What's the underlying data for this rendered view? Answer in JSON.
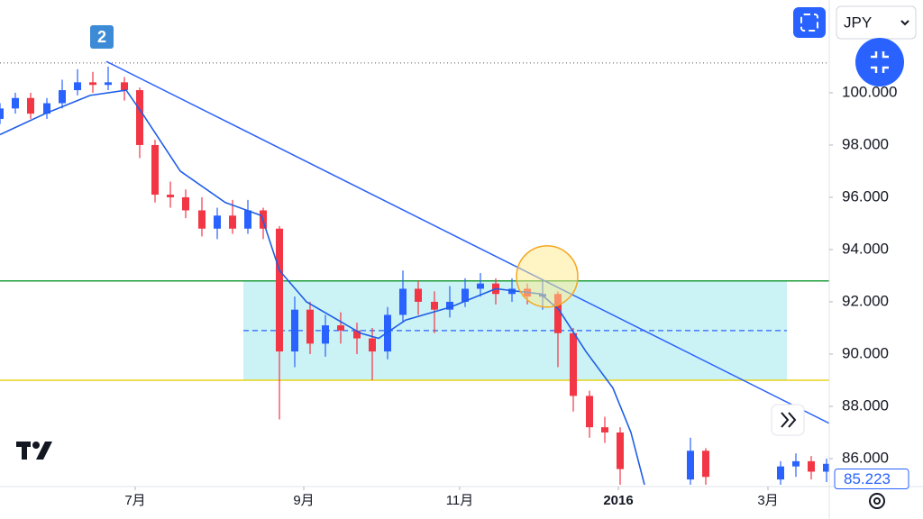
{
  "chart_data": {
    "type": "candlestick",
    "currency": "JPY",
    "badge": "2",
    "x": [
      0,
      17,
      34,
      52,
      69,
      86,
      103,
      120,
      138,
      155,
      172,
      189,
      206,
      224,
      241,
      258,
      275,
      292,
      310,
      327,
      344,
      361,
      378,
      396,
      413,
      430,
      447,
      464,
      482,
      499,
      516,
      533,
      550,
      568,
      585,
      602,
      619,
      636,
      654,
      671,
      688,
      766,
      783,
      866,
      883,
      900,
      917
    ],
    "open": [
      99.0,
      99.4,
      99.8,
      99.2,
      99.6,
      100.1,
      100.4,
      100.3,
      100.4,
      100.1,
      98.0,
      96.1,
      96.0,
      95.5,
      94.8,
      95.3,
      94.8,
      95.5,
      94.8,
      90.1,
      91.7,
      90.4,
      91.1,
      90.9,
      90.6,
      90.1,
      91.5,
      92.5,
      92.0,
      91.7,
      92.0,
      92.5,
      92.7,
      92.3,
      92.5,
      92.2,
      92.3,
      90.8,
      88.4,
      87.2,
      87.0,
      85.2,
      86.3,
      85.2,
      85.7,
      85.9,
      85.5
    ],
    "high": [
      99.6,
      100.0,
      100.0,
      99.8,
      100.5,
      100.9,
      100.8,
      101.0,
      100.6,
      100.2,
      98.2,
      96.6,
      96.3,
      96.0,
      95.6,
      95.9,
      95.9,
      95.6,
      94.9,
      92.2,
      92.0,
      91.5,
      91.6,
      91.2,
      91.0,
      91.8,
      93.2,
      92.8,
      92.4,
      92.6,
      92.9,
      93.1,
      92.9,
      92.9,
      92.7,
      92.8,
      92.4,
      91.0,
      88.6,
      87.6,
      87.2,
      86.8,
      86.4,
      85.9,
      86.2,
      86.1,
      86.0
    ],
    "low": [
      98.8,
      99.2,
      99.0,
      99.0,
      99.4,
      99.9,
      100.0,
      100.1,
      99.7,
      97.5,
      95.8,
      95.6,
      95.2,
      94.5,
      94.4,
      94.6,
      94.6,
      94.4,
      87.5,
      89.5,
      90.0,
      89.9,
      90.4,
      90.0,
      89.0,
      89.8,
      91.2,
      91.5,
      90.8,
      91.4,
      91.8,
      92.2,
      91.9,
      92.0,
      91.9,
      91.7,
      89.5,
      87.8,
      86.8,
      86.6,
      85.0,
      85.0,
      85.0,
      85.0,
      85.3,
      85.2,
      85.1
    ],
    "close": [
      99.4,
      99.8,
      99.2,
      99.6,
      100.1,
      100.4,
      100.3,
      100.4,
      100.1,
      98.0,
      96.1,
      96.0,
      95.5,
      94.8,
      95.3,
      94.8,
      95.5,
      94.8,
      90.1,
      91.7,
      90.4,
      91.1,
      90.9,
      90.6,
      90.1,
      91.5,
      92.5,
      92.0,
      91.7,
      92.0,
      92.5,
      92.7,
      92.3,
      92.5,
      92.2,
      92.3,
      90.8,
      88.4,
      87.2,
      87.0,
      85.6,
      86.3,
      85.3,
      85.7,
      85.9,
      85.5,
      85.8
    ],
    "up_color": "#2962ff",
    "down_color": "#f23645",
    "xlim": [
      0,
      920
    ],
    "xticks": [
      {
        "value": 150,
        "label": "7月"
      },
      {
        "value": 337,
        "label": "9月"
      },
      {
        "value": 510,
        "label": "11月"
      },
      {
        "value": 686,
        "label": "2016"
      },
      {
        "value": 852,
        "label": "3月"
      }
    ],
    "ylim": [
      84.93,
      103.55
    ],
    "yticks": [
      {
        "value": 86,
        "label": "86.000"
      },
      {
        "value": 88,
        "label": "88.000"
      },
      {
        "value": 90,
        "label": "90.000"
      },
      {
        "value": 92,
        "label": "92.000"
      },
      {
        "value": 94,
        "label": "94.000"
      },
      {
        "value": 96,
        "label": "96.000"
      },
      {
        "value": 98,
        "label": "98.000"
      },
      {
        "value": 100,
        "label": "100.000"
      }
    ],
    "grid": false,
    "last_price": 85.223,
    "moving_average": {
      "color": "#1e5ee6",
      "x": [
        0,
        50,
        100,
        140,
        160,
        200,
        250,
        290,
        310,
        340,
        400,
        420,
        450,
        500,
        550,
        600,
        620,
        650,
        680,
        700,
        715
      ],
      "values": [
        98.4,
        99.2,
        99.9,
        100.1,
        99.1,
        97.0,
        95.8,
        95.3,
        93.2,
        92.0,
        90.8,
        90.6,
        91.3,
        91.8,
        92.5,
        92.3,
        91.7,
        90.1,
        88.7,
        87.0,
        85.0
      ]
    },
    "trend_line": {
      "color": "#2962ff",
      "x": [
        118,
        920
      ],
      "values": [
        101.2,
        87.35
      ]
    },
    "range_box": {
      "x": [
        270,
        873
      ],
      "top": 92.8,
      "bottom": 89.0,
      "mid": 90.9,
      "color": "#b9eef2"
    },
    "levels": [
      {
        "value": 92.8,
        "color": "#1e9e3a"
      },
      {
        "value": 89.0,
        "color": "#e8d31a"
      }
    ],
    "high_line": 101.14,
    "highlight": {
      "x": 607,
      "value": 92.97,
      "color": "#f5a623"
    }
  }
}
